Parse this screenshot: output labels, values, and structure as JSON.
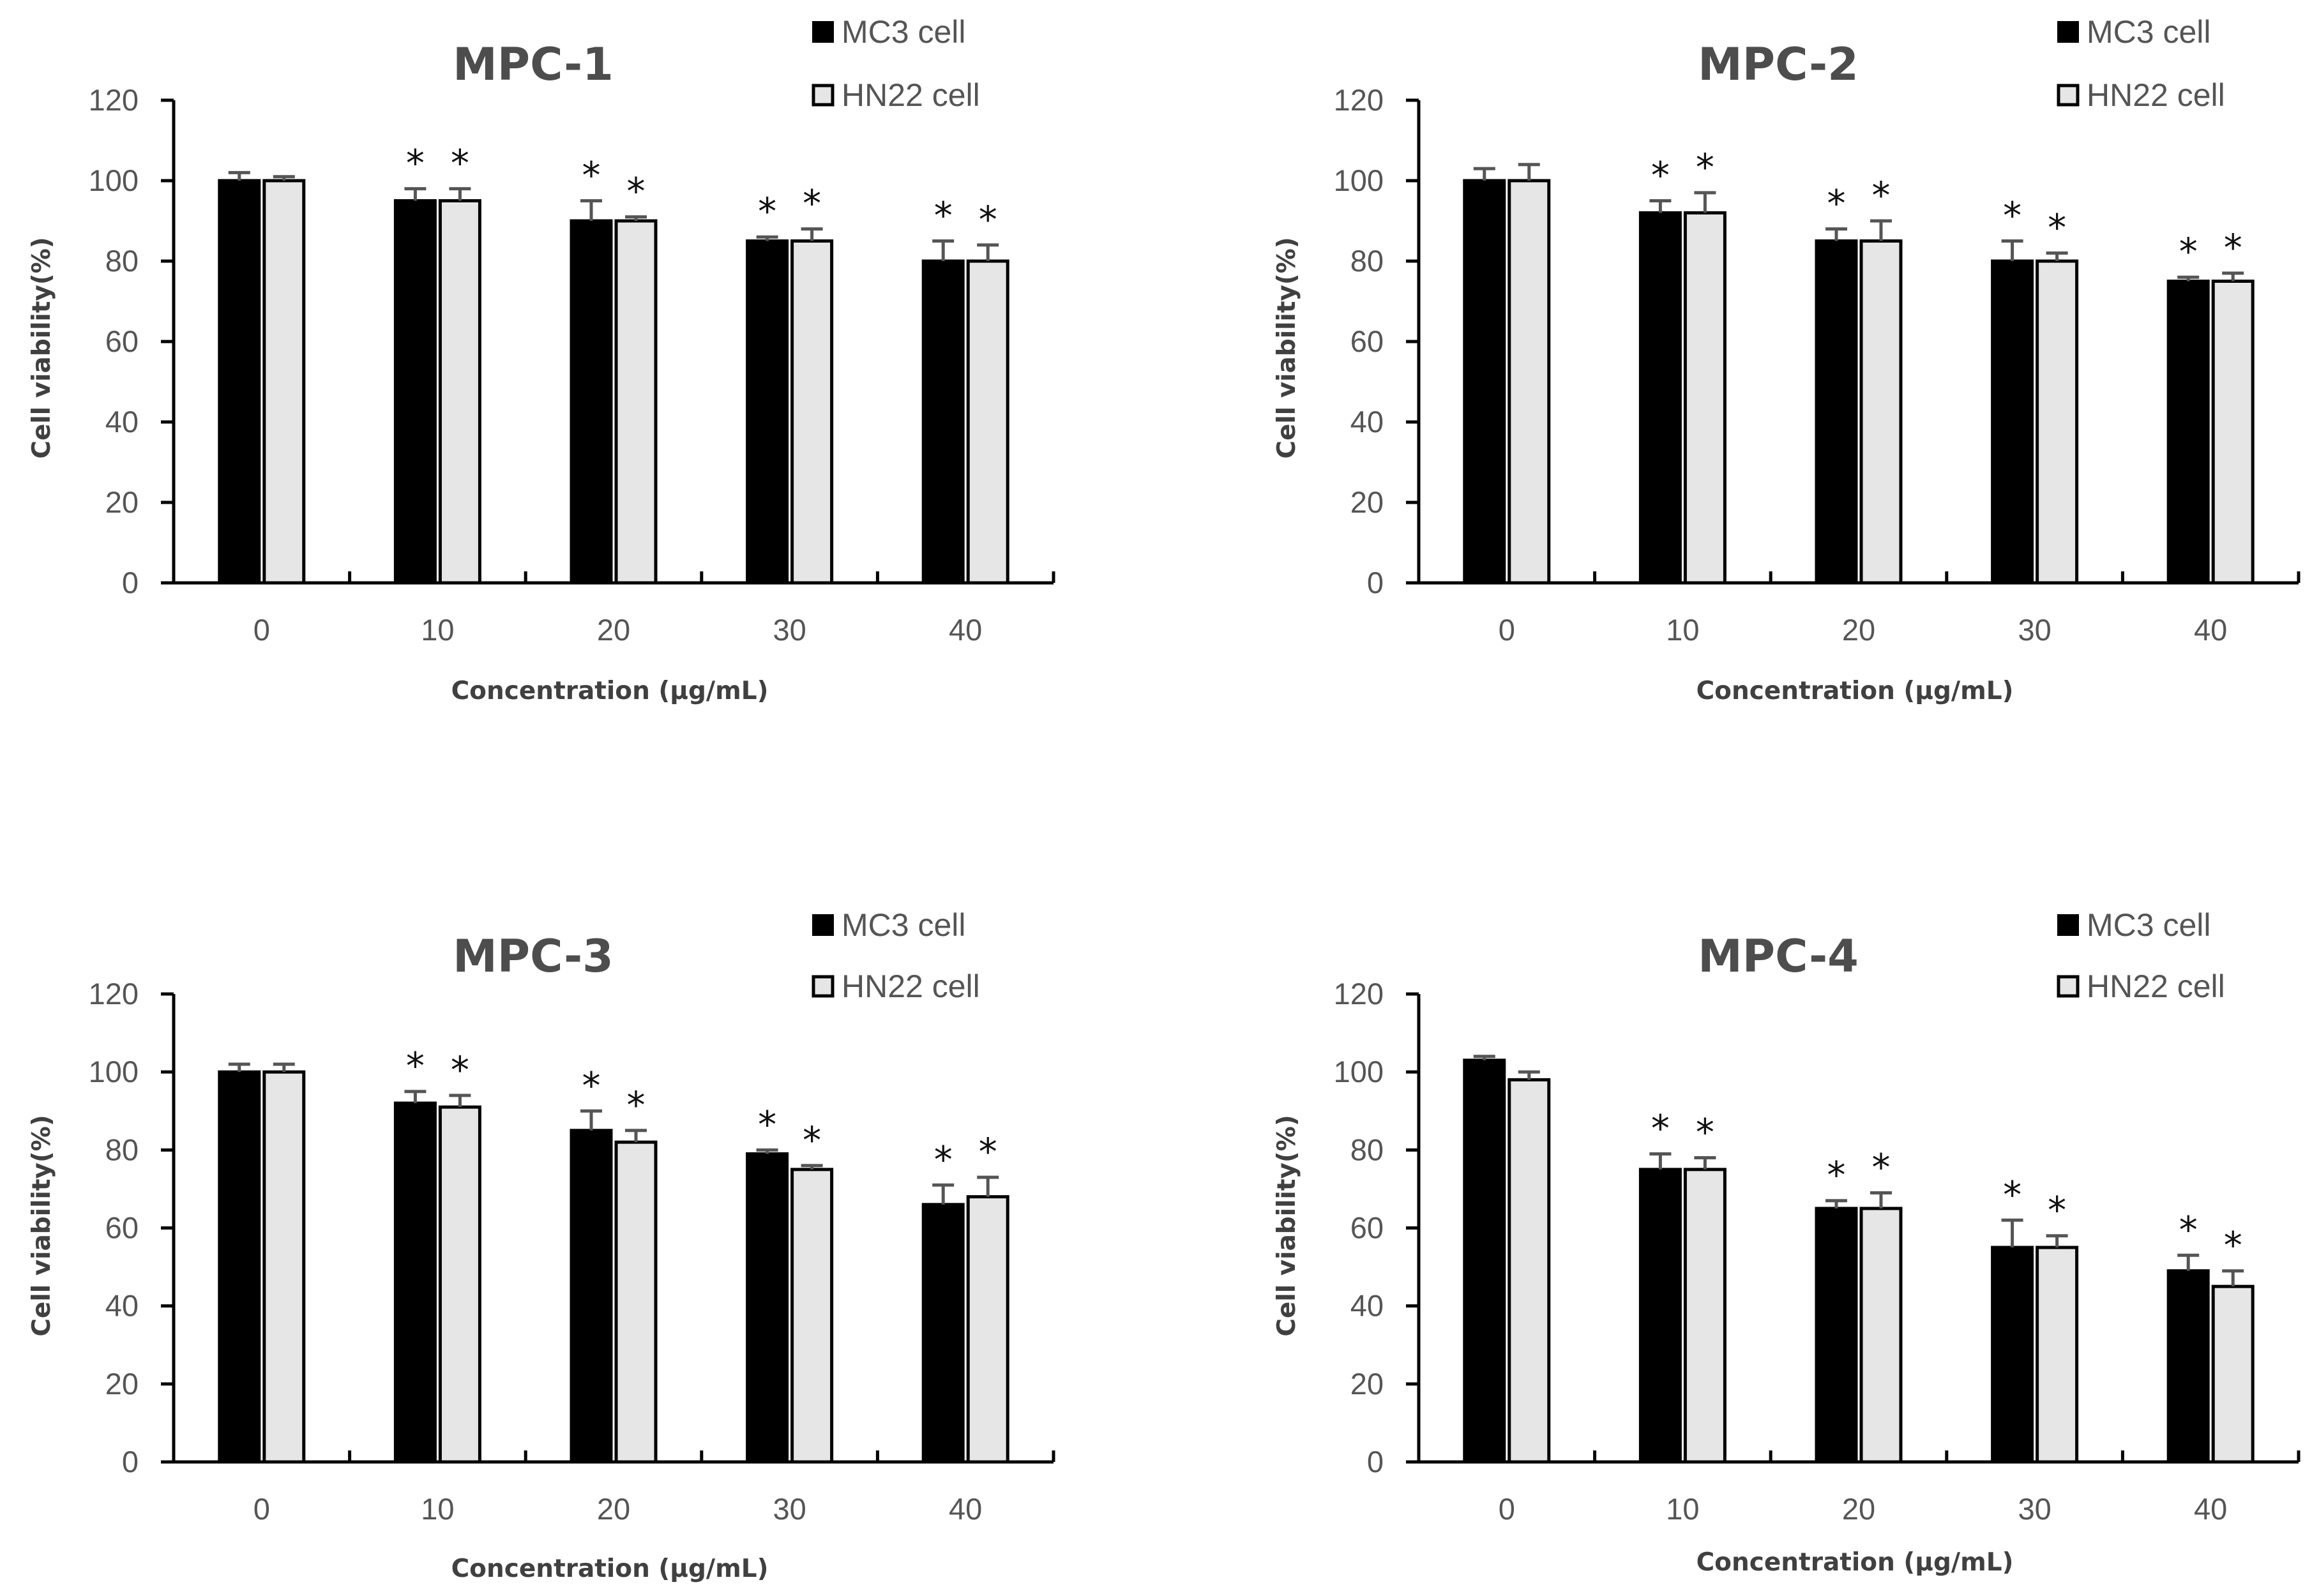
{
  "chart_data": [
    {
      "type": "bar",
      "title": "MPC-1",
      "xlabel": "Concentration (μg/mL)",
      "ylabel": "Cell viability(%)",
      "ylim": [
        0,
        120
      ],
      "yticks": [
        "0",
        "20",
        "40",
        "60",
        "80",
        "100",
        "120"
      ],
      "categories": [
        "0",
        "10",
        "20",
        "30",
        "40"
      ],
      "legend_position": "top-right",
      "series": [
        {
          "name": "MC3 cell",
          "color": "#000000",
          "values": [
            100,
            95,
            90,
            85,
            80
          ],
          "errors": [
            2,
            3,
            5,
            1,
            5
          ],
          "significance": [
            "",
            "*",
            "*",
            "*",
            "*"
          ]
        },
        {
          "name": "HN22 cell",
          "color": "#e6e6e6",
          "values": [
            100,
            95,
            90,
            85,
            80
          ],
          "errors": [
            1,
            3,
            1,
            3,
            4
          ],
          "significance": [
            "",
            "*",
            "*",
            "*",
            "*"
          ]
        }
      ]
    },
    {
      "type": "bar",
      "title": "MPC-2",
      "xlabel": "Concentration (μg/mL)",
      "ylabel": "Cell viability(%)",
      "ylim": [
        0,
        120
      ],
      "yticks": [
        "0",
        "20",
        "40",
        "60",
        "80",
        "100",
        "120"
      ],
      "categories": [
        "0",
        "10",
        "20",
        "30",
        "40"
      ],
      "legend_position": "top-right",
      "series": [
        {
          "name": "MC3 cell",
          "color": "#000000",
          "values": [
            100,
            92,
            85,
            80,
            75
          ],
          "errors": [
            3,
            3,
            3,
            5,
            1
          ],
          "significance": [
            "",
            "*",
            "*",
            "*",
            "*"
          ]
        },
        {
          "name": "HN22 cell",
          "color": "#e6e6e6",
          "values": [
            100,
            92,
            85,
            80,
            75
          ],
          "errors": [
            4,
            5,
            5,
            2,
            2
          ],
          "significance": [
            "",
            "*",
            "*",
            "*",
            "*"
          ]
        }
      ]
    },
    {
      "type": "bar",
      "title": "MPC-3",
      "xlabel": "Concentration (μg/mL)",
      "ylabel": "Cell viability(%)",
      "ylim": [
        0,
        120
      ],
      "yticks": [
        "0",
        "20",
        "40",
        "60",
        "80",
        "100",
        "120"
      ],
      "categories": [
        "0",
        "10",
        "20",
        "30",
        "40"
      ],
      "legend_position": "top-right",
      "series": [
        {
          "name": "MC3 cell",
          "color": "#000000",
          "values": [
            100,
            92,
            85,
            79,
            66
          ],
          "errors": [
            2,
            3,
            5,
            1,
            5
          ],
          "significance": [
            "",
            "*",
            "*",
            "*",
            "*"
          ]
        },
        {
          "name": "HN22 cell",
          "color": "#e6e6e6",
          "values": [
            100,
            91,
            82,
            75,
            68
          ],
          "errors": [
            2,
            3,
            3,
            1,
            5
          ],
          "significance": [
            "",
            "*",
            "*",
            "*",
            "*"
          ]
        }
      ]
    },
    {
      "type": "bar",
      "title": "MPC-4",
      "xlabel": "Concentration (μg/mL)",
      "ylabel": "Cell viability(%)",
      "ylim": [
        0,
        120
      ],
      "yticks": [
        "0",
        "20",
        "40",
        "60",
        "80",
        "100",
        "120"
      ],
      "categories": [
        "0",
        "10",
        "20",
        "30",
        "40"
      ],
      "legend_position": "top-right",
      "series": [
        {
          "name": "MC3 cell",
          "color": "#000000",
          "values": [
            103,
            75,
            65,
            55,
            49
          ],
          "errors": [
            1,
            4,
            2,
            7,
            4
          ],
          "significance": [
            "",
            "*",
            "*",
            "*",
            "*"
          ]
        },
        {
          "name": "HN22 cell",
          "color": "#e6e6e6",
          "values": [
            98,
            75,
            65,
            55,
            45
          ],
          "errors": [
            2,
            3,
            4,
            3,
            4
          ],
          "significance": [
            "",
            "*",
            "*",
            "*",
            "*"
          ]
        }
      ]
    }
  ]
}
